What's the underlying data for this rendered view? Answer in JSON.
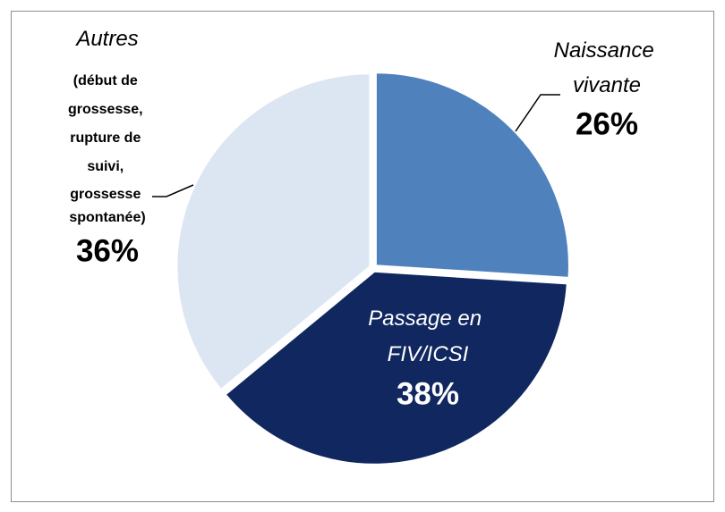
{
  "chart_data": {
    "type": "pie",
    "categories": [
      "Naissance vivante",
      "Passage en FIV/ICSI",
      "Autres"
    ],
    "values": [
      26,
      38,
      36
    ],
    "value_labels": [
      "26%",
      "38%",
      "36%"
    ],
    "colors": [
      "#4f81bd",
      "#10275f",
      "#dce6f2"
    ],
    "annotations": [
      {
        "text": "(début de grossesse, rupture de suivi, grossesse spontanée)",
        "category": 2
      }
    ]
  }
}
